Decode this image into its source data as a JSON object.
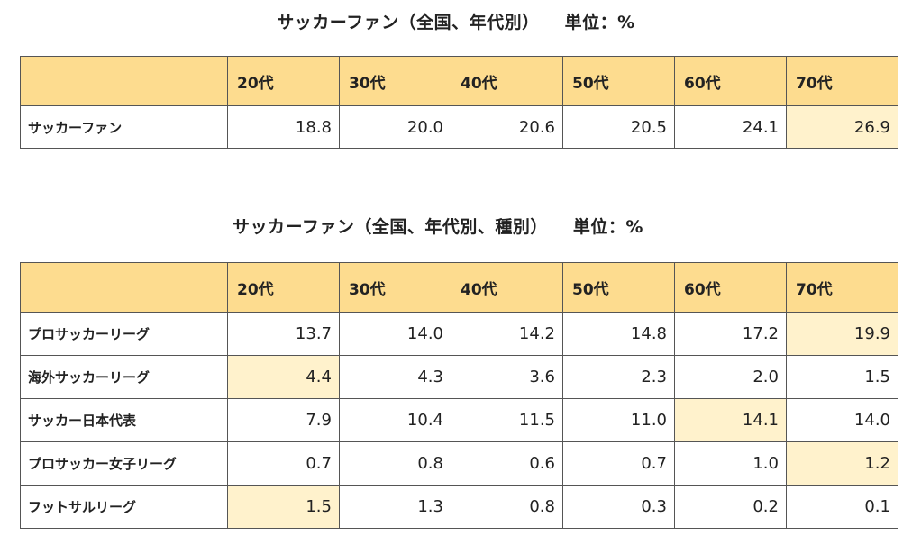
{
  "table1": {
    "title": "サッカーファン（全国、年代別）",
    "unit": "単位：%",
    "columns": [
      "20代",
      "30代",
      "40代",
      "50代",
      "60代",
      "70代"
    ],
    "rows": [
      {
        "label": "サッカーファン",
        "values": [
          "18.8",
          "20.0",
          "20.6",
          "20.5",
          "24.1",
          "26.9"
        ],
        "highlight": [
          5
        ]
      }
    ]
  },
  "table2": {
    "title": "サッカーファン（全国、年代別、種別）",
    "unit": "単位：%",
    "columns": [
      "20代",
      "30代",
      "40代",
      "50代",
      "60代",
      "70代"
    ],
    "rows": [
      {
        "label": "プロサッカーリーグ",
        "values": [
          "13.7",
          "14.0",
          "14.2",
          "14.8",
          "17.2",
          "19.9"
        ],
        "highlight": [
          5
        ]
      },
      {
        "label": "海外サッカーリーグ",
        "values": [
          "4.4",
          "4.3",
          "3.6",
          "2.3",
          "2.0",
          "1.5"
        ],
        "highlight": [
          0
        ]
      },
      {
        "label": "サッカー日本代表",
        "values": [
          "7.9",
          "10.4",
          "11.5",
          "11.0",
          "14.1",
          "14.0"
        ],
        "highlight": [
          4
        ]
      },
      {
        "label": "プロサッカー女子リーグ",
        "values": [
          "0.7",
          "0.8",
          "0.6",
          "0.7",
          "1.0",
          "1.2"
        ],
        "highlight": [
          5
        ]
      },
      {
        "label": "フットサルリーグ",
        "values": [
          "1.5",
          "1.3",
          "0.8",
          "0.3",
          "0.2",
          "0.1"
        ],
        "highlight": [
          0
        ]
      }
    ]
  },
  "colors": {
    "header_bg": "#fddc8f",
    "highlight_bg": "#fff2cc",
    "border": "#555555"
  }
}
